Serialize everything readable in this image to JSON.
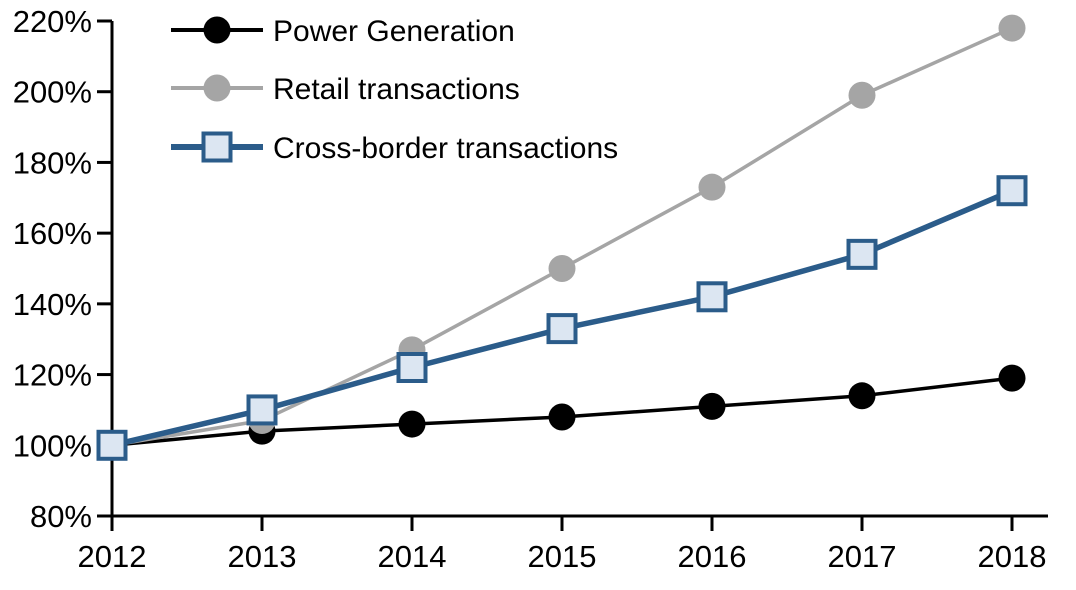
{
  "chart_data": {
    "type": "line",
    "categories": [
      "2012",
      "2013",
      "2014",
      "2015",
      "2016",
      "2017",
      "2018"
    ],
    "series": [
      {
        "name": "Power Generation",
        "color": "#000000",
        "marker": "circle",
        "marker_fill": "#000000",
        "values": [
          100,
          104,
          106,
          108,
          111,
          114,
          119
        ]
      },
      {
        "name": "Retail transactions",
        "color": "#a5a5a5",
        "marker": "circle",
        "marker_fill": "#a5a5a5",
        "values": [
          100,
          107,
          127,
          150,
          173,
          199,
          218
        ]
      },
      {
        "name": "Cross-border transactions",
        "color": "#2b5c8a",
        "marker": "square",
        "marker_fill": "#dce6f2",
        "values": [
          100,
          110,
          122,
          133,
          142,
          154,
          172
        ]
      }
    ],
    "ylim": [
      80,
      220
    ],
    "ytick_step": 20,
    "ytick_labels": [
      "80%",
      "100%",
      "120%",
      "140%",
      "160%",
      "180%",
      "200%",
      "220%"
    ],
    "xtick_labels": [
      "2012",
      "2013",
      "2014",
      "2015",
      "2016",
      "2017",
      "2018"
    ],
    "unit": "%",
    "grid": false,
    "legend_position": "top-left",
    "axis_color": "#000000",
    "background_color": "#ffffff"
  }
}
